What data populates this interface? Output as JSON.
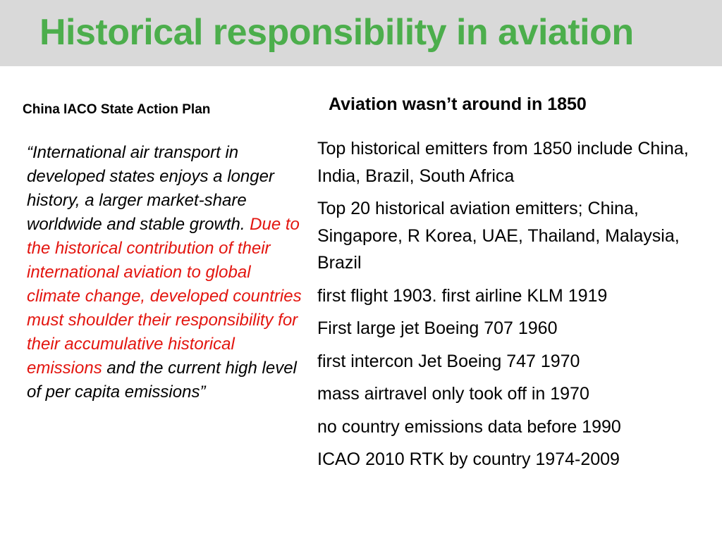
{
  "slide": {
    "title": "Historical responsibility in aviation",
    "title_color": "#4cae4c",
    "header_bg": "#d9d9d9"
  },
  "left": {
    "heading": "China IACO State Action Plan",
    "quote_open": "“International air transport in developed states enjoys a longer history, a larger market-share worldwide and stable growth. ",
    "quote_highlight": "Due to the historical contribution of their international aviation to global climate change, developed countries must shoulder their responsibility for their accumulative historical emissions",
    "quote_close": " and the current high level of per capita emissions”",
    "highlight_color": "#e3150f"
  },
  "right": {
    "heading": "Aviation wasn’t around in 1850",
    "bullets": [
      "Top historical emitters from 1850 include China, India, Brazil, South Africa",
      "Top 20 historical aviation emitters; China, Singapore, R Korea, UAE, Thailand, Malaysia, Brazil",
      "first flight 1903. first airline KLM 1919",
      "First large jet Boeing 707 1960",
      "first intercon Jet Boeing 747 1970",
      "mass airtravel only took off in 1970",
      "no country emissions data before 1990",
      "ICAO 2010 RTK by country 1974-2009"
    ]
  }
}
